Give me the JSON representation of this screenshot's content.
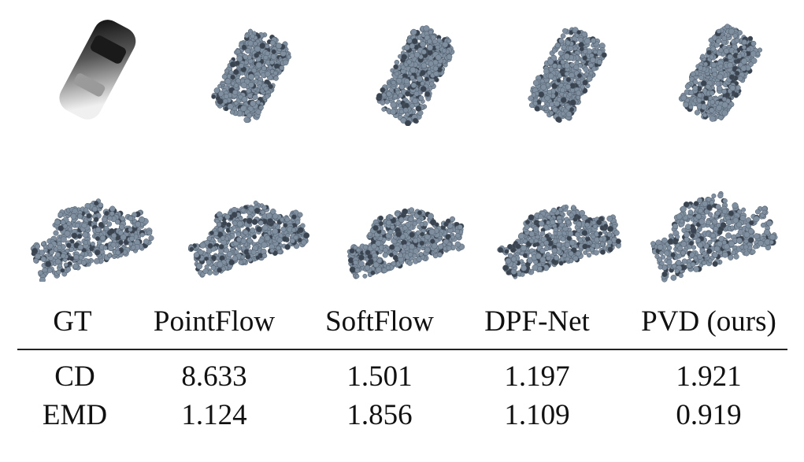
{
  "methods": [
    "GT",
    "PointFlow",
    "SoftFlow",
    "DPF-Net",
    "PVD (ours)"
  ],
  "metrics": [
    {
      "name": "CD",
      "values": [
        "8.633",
        "1.501",
        "1.197",
        "1.921"
      ]
    },
    {
      "name": "EMD",
      "values": [
        "1.124",
        "1.856",
        "1.109",
        "0.919"
      ]
    }
  ],
  "colors": {
    "point_cloud": "#7f8fa0",
    "point_shadow": "#3a4450",
    "text": "#111111"
  }
}
